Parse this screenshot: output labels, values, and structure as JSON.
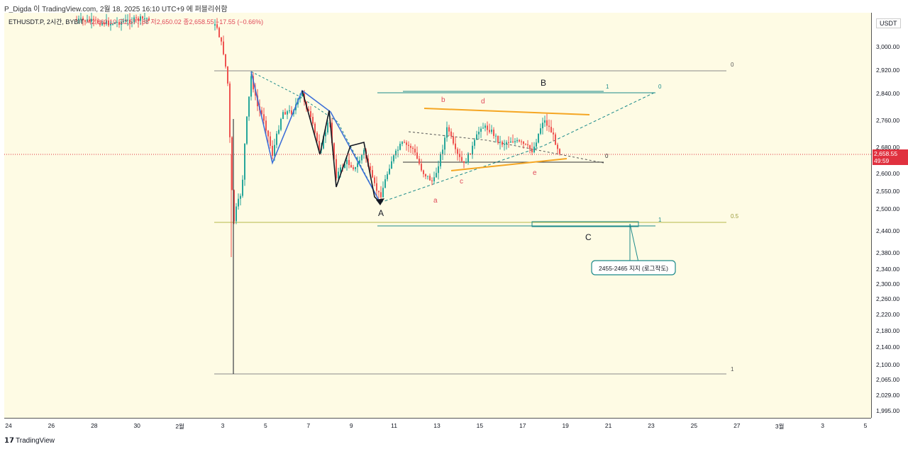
{
  "header": {
    "attribution": "P_Digda 이 TradingView.com, 2월 18, 2025 16:10 UTC+9 에 퍼블리쉬함"
  },
  "legend": {
    "symbol": "ETHUSDT.P, 2시간, BYBIT",
    "ohlc": "시2,662.10 고2,677.88 저2,650.02 종2,658.55 −17.55 (−0.66%)"
  },
  "price_axis": {
    "unit": "USDT",
    "ticks": [
      "3,000.00",
      "2,920.00",
      "2,840.00",
      "2,760.00",
      "2,680.00",
      "2,600.00",
      "2,550.00",
      "2,500.00",
      "2,440.00",
      "2,380.00",
      "2,340.00",
      "2,300.00",
      "2,260.00",
      "2,220.00",
      "2,180.00",
      "2,140.00",
      "2,100.00",
      "2,065.00",
      "2,029.00",
      "1,995.00"
    ],
    "current_price": "2,658.55",
    "countdown": "49:59"
  },
  "time_axis": {
    "ticks": [
      "24",
      "26",
      "28",
      "30",
      "2월",
      "3",
      "5",
      "7",
      "9",
      "11",
      "13",
      "15",
      "17",
      "19",
      "21",
      "23",
      "25",
      "27",
      "3월",
      "3",
      "5"
    ]
  },
  "annotations": {
    "wave_A": "A",
    "wave_B": "B",
    "wave_C": "C",
    "sub_a": "a",
    "sub_b": "b",
    "sub_c": "c",
    "sub_d": "d",
    "sub_e": "e",
    "fib_0_top": "0",
    "fib_05": "0.5",
    "fib_1_bottom": "1",
    "fib_1_b": "1",
    "fib_0_b": "0",
    "fib_0_mid": "0",
    "fib_1_c": "1",
    "callout": "2455-2465 지지 (로그작도)"
  },
  "colors": {
    "background": "#fefbe4",
    "candle_up": "#26a69a",
    "candle_down": "#ef5350",
    "orange_lines": "#f5a623",
    "blue_lines": "#3d6fd8",
    "teal_lines": "#1a8a8a",
    "fib_05": "#b7b84a",
    "sub_labels": "#e04a5a"
  },
  "footer": {
    "logo": "𝟭𝟳",
    "brand": "TradingView"
  },
  "chart_data": {
    "type": "candlestick",
    "symbol": "ETHUSDT.P",
    "timeframe": "2시간",
    "exchange": "BYBIT",
    "last_close": 2658.55,
    "horizontal_levels": [
      {
        "label": "0",
        "price": 2920
      },
      {
        "label": "0.5",
        "price": 2464
      },
      {
        "label": "1",
        "price": 2080
      },
      {
        "label": "B high",
        "price": 2850
      },
      {
        "label": "support zone",
        "price_range": [
          2455,
          2465
        ]
      }
    ],
    "wave_points": [
      {
        "label": "A",
        "price": 2510
      },
      {
        "label": "B",
        "price": 2850
      },
      {
        "label": "a",
        "price": 2560
      },
      {
        "label": "b",
        "price": 2800
      },
      {
        "label": "c",
        "price": 2610
      },
      {
        "label": "d",
        "price": 2790
      },
      {
        "label": "e",
        "price": 2625
      },
      {
        "label": "C",
        "price": 2460
      }
    ]
  }
}
